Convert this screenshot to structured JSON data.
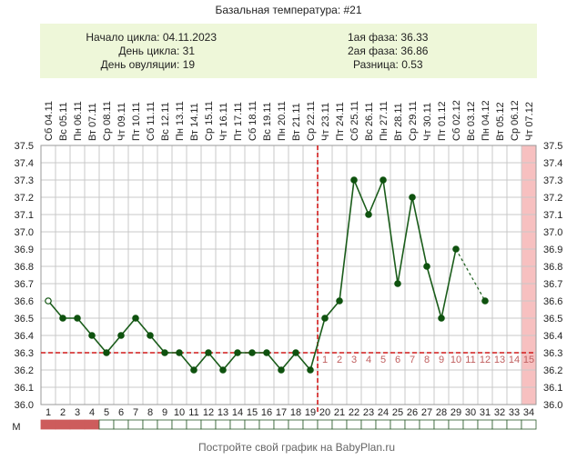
{
  "header": {
    "title": "Базальная температура: #21",
    "cycle_start": "Начало цикла: 04.11.2023",
    "cycle_day": "День цикла: 31",
    "ovulation_day": "День овуляции: 19",
    "phase1": "1ая фаза: 36.33",
    "phase2": "2ая фаза: 36.86",
    "difference": "Разница: 0.53"
  },
  "footer": "Постройте свой график на BabyPlan.ru",
  "colors": {
    "panel": "#eef7d9",
    "line": "#1a5c1a",
    "marker": "#0f520f",
    "ref_line": "#d11a1a",
    "phase_number": "#c06060",
    "highlight": "#f7c0c0",
    "menstruation": "#cd5c5c",
    "grid": "#c8c8c8"
  },
  "chart_data": {
    "type": "line",
    "x": [
      1,
      2,
      3,
      4,
      5,
      6,
      7,
      8,
      9,
      10,
      11,
      12,
      13,
      14,
      15,
      16,
      17,
      18,
      19,
      20,
      21,
      22,
      23,
      24,
      25,
      26,
      27,
      28,
      29,
      30,
      31,
      32,
      33,
      34
    ],
    "dates": [
      "Сб 04.11",
      "Вс 05.11",
      "Пн 06.11",
      "Вт 07.11",
      "Ср 08.11",
      "Чт 09.11",
      "Пт 10.11",
      "Сб 11.11",
      "Вс 12.11",
      "Пн 13.11",
      "Вт 14.11",
      "Ср 15.11",
      "Чт 16.11",
      "Пт 17.11",
      "Сб 18.11",
      "Вс 19.11",
      "Пн 20.11",
      "Вт 21.11",
      "Ср 22.11",
      "Чт 23.11",
      "Пт 24.11",
      "Сб 25.11",
      "Вс 26.11",
      "Пн 27.11",
      "Вт 28.11",
      "Ср 29.11",
      "Чт 30.11",
      "Пт 01.12",
      "Сб 02.12",
      "Вс 03.12",
      "Пн 04.12",
      "Вт 05.12",
      "Ср 06.12",
      "Чт 07.12"
    ],
    "series": [
      {
        "values": [
          36.6,
          36.5,
          36.5,
          36.4,
          36.3,
          36.4,
          36.5,
          36.4,
          36.3,
          36.3,
          36.2,
          36.3,
          36.2,
          36.3,
          36.3,
          36.3,
          36.2,
          36.3,
          36.2,
          36.5,
          36.6,
          37.3,
          37.1,
          37.3,
          36.7,
          37.2,
          36.8,
          36.5,
          36.9,
          null,
          36.6,
          null,
          null,
          null
        ]
      }
    ],
    "open_markers_at_day": [
      1
    ],
    "dashed_segment_days": [
      29,
      31
    ],
    "coverline": 36.3,
    "ovulation_day": 19,
    "luteal_day_labels": [
      "1",
      "2",
      "3",
      "4",
      "5",
      "6",
      "7",
      "8",
      "9",
      "10",
      "11",
      "12",
      "13",
      "14",
      "15"
    ],
    "highlighted_day": 34,
    "menstruation_days": [
      1,
      2,
      3,
      4
    ],
    "ylim": [
      36.0,
      37.5
    ],
    "yticks": [
      "36.0",
      "36.1",
      "36.2",
      "36.3",
      "36.4",
      "36.5",
      "36.6",
      "36.7",
      "36.8",
      "36.9",
      "37.0",
      "37.1",
      "37.2",
      "37.3",
      "37.4",
      "37.5"
    ],
    "row_label": "М",
    "grid": true
  }
}
